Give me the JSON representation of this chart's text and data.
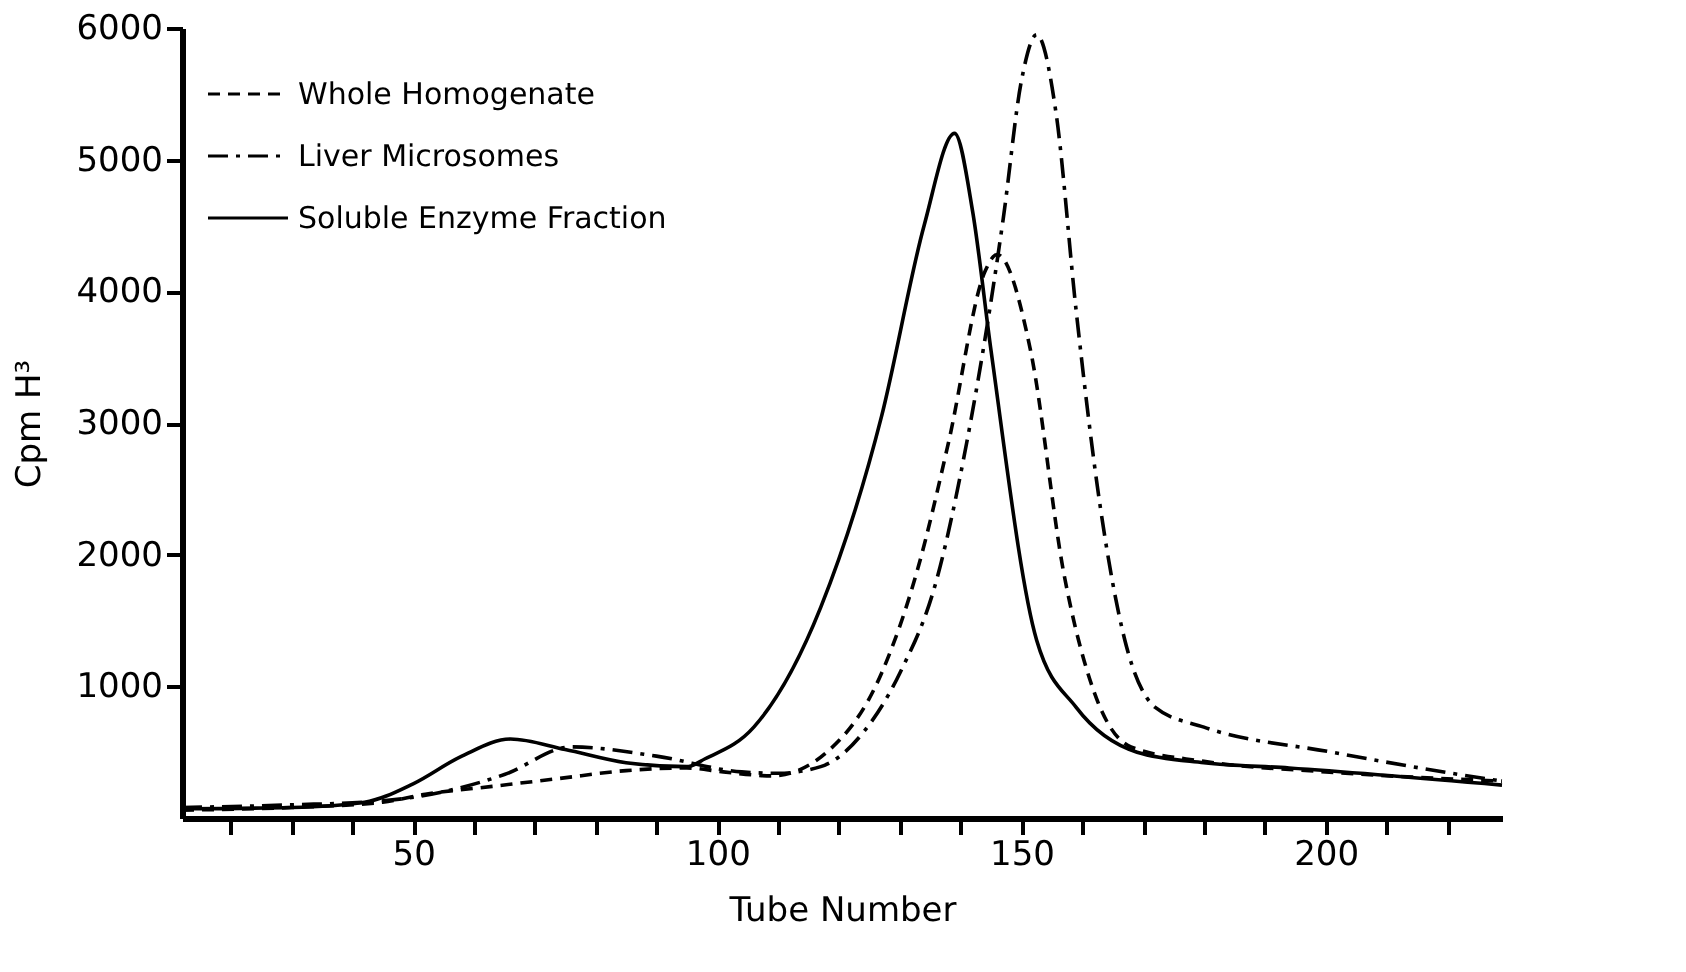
{
  "chart_data": {
    "type": "line",
    "xlabel": "Tube Number",
    "ylabel": "Cpm H³",
    "xlim": [
      12,
      229
    ],
    "ylim": [
      0,
      6000
    ],
    "xticks": [
      {
        "value": 20,
        "label": null
      },
      {
        "value": 30,
        "label": null
      },
      {
        "value": 40,
        "label": null
      },
      50,
      {
        "value": 60,
        "label": null
      },
      {
        "value": 70,
        "label": null
      },
      {
        "value": 80,
        "label": null
      },
      {
        "value": 90,
        "label": null
      },
      100,
      {
        "value": 110,
        "label": null
      },
      {
        "value": 120,
        "label": null
      },
      {
        "value": 130,
        "label": null
      },
      {
        "value": 140,
        "label": null
      },
      150,
      {
        "value": 160,
        "label": null
      },
      {
        "value": 170,
        "label": null
      },
      {
        "value": 180,
        "label": null
      },
      {
        "value": 190,
        "label": null
      },
      200,
      {
        "value": 210,
        "label": null
      },
      {
        "value": 220,
        "label": null
      }
    ],
    "yticks": [
      1000,
      2000,
      3000,
      4000,
      5000,
      6000
    ],
    "grid": false,
    "legend": "top left",
    "marker": "none",
    "series": [
      {
        "name": "Whole Homogenate",
        "color": "#000000",
        "line_style": "dashed",
        "x": [
          12,
          30,
          45,
          52,
          63,
          74,
          85,
          95,
          101,
          109,
          118,
          127,
          133,
          138,
          144,
          146,
          151.5,
          157,
          162,
          168,
          180,
          200,
          229
        ],
        "values": [
          60,
          80,
          120,
          180,
          240,
          300,
          360,
          380,
          350,
          320,
          500,
          1100,
          1900,
          2850,
          4150,
          4280,
          3550,
          1850,
          950,
          540,
          430,
          350,
          280
        ]
      },
      {
        "name": "Liver Microsomes",
        "color": "#000000",
        "line_style": "dashdot",
        "x": [
          12,
          30,
          45,
          55,
          65,
          76,
          90,
          104,
          110,
          117,
          124,
          130,
          136,
          141,
          147,
          150,
          152.5,
          155.7,
          159,
          163,
          167,
          172,
          180,
          201,
          222,
          229
        ],
        "values": [
          80,
          100,
          130,
          200,
          330,
          540,
          470,
          350,
          340,
          390,
          650,
          1100,
          1800,
          2850,
          4550,
          5600,
          5950,
          5350,
          3850,
          2350,
          1350,
          840,
          690,
          500,
          330,
          280
        ]
      },
      {
        "name": "Soluble Enzyme Fraction",
        "color": "#000000",
        "line_style": "solid",
        "x": [
          12,
          30,
          42,
          50,
          58,
          66,
          75,
          85,
          95,
          98,
          106,
          117,
          127,
          134,
          139,
          142,
          145,
          152.5,
          159,
          169,
          180,
          194,
          229
        ],
        "values": [
          70,
          80,
          120,
          260,
          470,
          600,
          520,
          420,
          390,
          450,
          690,
          1600,
          3050,
          4500,
          5200,
          4600,
          3550,
          1350,
          840,
          500,
          420,
          380,
          250
        ]
      }
    ]
  }
}
